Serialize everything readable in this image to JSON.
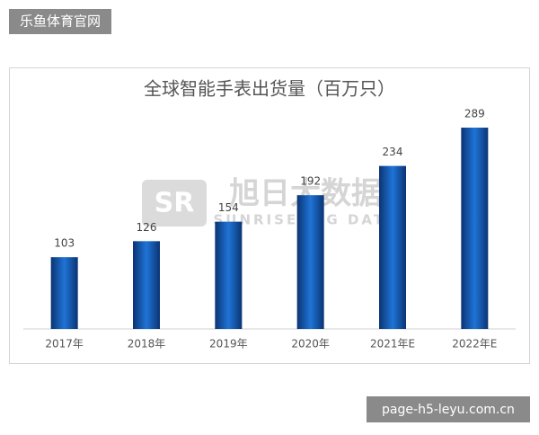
{
  "site_label": "乐鱼体育官网",
  "url_label": "page-h5-leyu.com.cn",
  "watermark": {
    "logo": "旭日大数据",
    "subtitle": "SUNRISE BIG DATA"
  },
  "chart_data": {
    "type": "bar",
    "title": "全球智能手表出货量（百万只）",
    "categories": [
      "2017年",
      "2018年",
      "2019年",
      "2020年",
      "2021年E",
      "2022年E"
    ],
    "values": [
      103,
      126,
      154,
      192,
      234,
      289
    ],
    "color": "#1560c0"
  }
}
